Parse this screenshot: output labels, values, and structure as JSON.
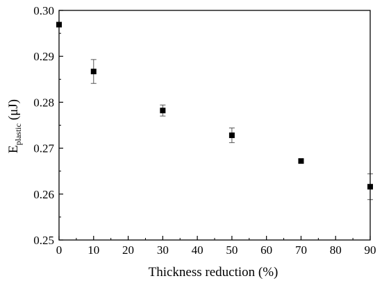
{
  "chart_data": {
    "type": "scatter",
    "xlabel": "Thickness reduction (%)",
    "ylabel": {
      "main": "E",
      "subscript": "plastic",
      "unit": " (μJ)"
    },
    "xlim": [
      0,
      90
    ],
    "ylim": [
      0.25,
      0.3
    ],
    "xticks": [
      0,
      10,
      20,
      30,
      40,
      50,
      60,
      70,
      80,
      90
    ],
    "xtick_labels": [
      "0",
      "10",
      "20",
      "30",
      "40",
      "50",
      "60",
      "70",
      "80",
      "90"
    ],
    "yticks": [
      0.25,
      0.26,
      0.27,
      0.28,
      0.29,
      0.3
    ],
    "ytick_labels": [
      "0.25",
      "0.26",
      "0.27",
      "0.28",
      "0.29",
      "0.30"
    ],
    "grid": false,
    "marker": "square",
    "color": "#000000",
    "series": [
      {
        "x": [
          0,
          10,
          30,
          50,
          70,
          90
        ],
        "y": [
          0.2969,
          0.2867,
          0.2782,
          0.2728,
          0.2672,
          0.2616
        ],
        "error": [
          0.0004,
          0.0026,
          0.0012,
          0.0016,
          0.0003,
          0.0028
        ]
      }
    ]
  }
}
